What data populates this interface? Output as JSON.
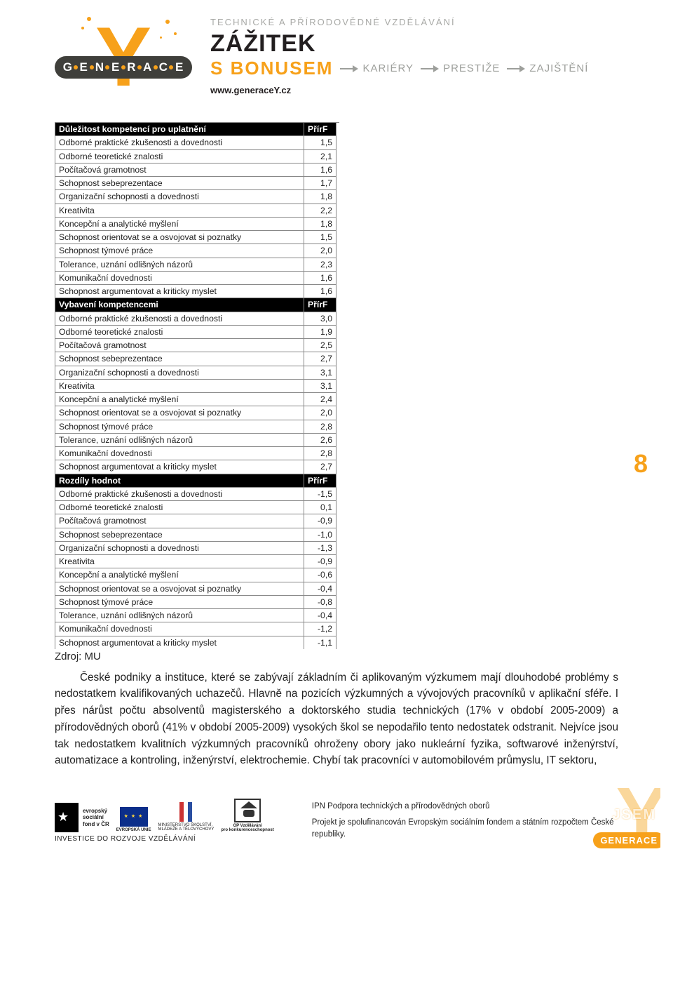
{
  "header": {
    "tagline": "TECHNICKÉ A PŘÍRODOVĚDNÉ VZDĚLÁVÁNÍ",
    "title1": "ZÁŽITEK",
    "title2": "S BONUSEM",
    "arrow_words": [
      "KARIÉRY",
      "PRESTIŽE",
      "ZAJIŠTĚNÍ"
    ],
    "url": "www.generaceY.cz",
    "logo_letters": [
      "G",
      "E",
      "N",
      "E",
      "R",
      "A",
      "C",
      "E"
    ],
    "logo_bar_bg": "#3f3f3b",
    "accent_color": "#f7a11a"
  },
  "page_number": "8",
  "table": {
    "col_header_value": "PřírF",
    "sections": [
      {
        "title": "Důležitost kompetencí pro uplatnění",
        "rows": [
          [
            "Odborné praktické zkušenosti a dovednosti",
            "1,5"
          ],
          [
            "Odborné teoretické znalosti",
            "2,1"
          ],
          [
            "Počítačová gramotnost",
            "1,6"
          ],
          [
            "Schopnost sebeprezentace",
            "1,7"
          ],
          [
            "Organizační schopnosti a dovednosti",
            "1,8"
          ],
          [
            "Kreativita",
            "2,2"
          ],
          [
            "Koncepční a analytické myšlení",
            "1,8"
          ],
          [
            "Schopnost orientovat se a osvojovat si poznatky",
            "1,5"
          ],
          [
            "Schopnost týmové práce",
            "2,0"
          ],
          [
            "Tolerance, uznání odlišných názorů",
            "2,3"
          ],
          [
            "Komunikační dovednosti",
            "1,6"
          ],
          [
            "Schopnost argumentovat a kriticky myslet",
            "1,6"
          ]
        ]
      },
      {
        "title": "Vybavení kompetencemi",
        "rows": [
          [
            "Odborné praktické zkušenosti a dovednosti",
            "3,0"
          ],
          [
            "Odborné teoretické znalosti",
            "1,9"
          ],
          [
            "Počítačová gramotnost",
            "2,5"
          ],
          [
            "Schopnost sebeprezentace",
            "2,7"
          ],
          [
            "Organizační schopnosti a dovednosti",
            "3,1"
          ],
          [
            "Kreativita",
            "3,1"
          ],
          [
            "Koncepční a analytické myšlení",
            "2,4"
          ],
          [
            "Schopnost orientovat se a osvojovat si poznatky",
            "2,0"
          ],
          [
            "Schopnost týmové práce",
            "2,8"
          ],
          [
            "Tolerance, uznání odlišných názorů",
            "2,6"
          ],
          [
            "Komunikační dovednosti",
            "2,8"
          ],
          [
            "Schopnost argumentovat a kriticky myslet",
            "2,7"
          ]
        ]
      },
      {
        "title": "Rozdíly hodnot",
        "rows": [
          [
            "Odborné praktické zkušenosti a dovednosti",
            "-1,5"
          ],
          [
            "Odborné teoretické znalosti",
            "0,1"
          ],
          [
            "Počítačová gramotnost",
            "-0,9"
          ],
          [
            "Schopnost sebeprezentace",
            "-1,0"
          ],
          [
            "Organizační schopnosti a dovednosti",
            "-1,3"
          ],
          [
            "Kreativita",
            "-0,9"
          ],
          [
            "Koncepční a analytické myšlení",
            "-0,6"
          ],
          [
            "Schopnost orientovat se a osvojovat si poznatky",
            "-0,4"
          ],
          [
            "Schopnost týmové práce",
            "-0,8"
          ],
          [
            "Tolerance, uznání odlišných názorů",
            "-0,4"
          ],
          [
            "Komunikační dovednosti",
            "-1,2"
          ]
        ],
        "cut_row": [
          "Schopnost argumentovat a kriticky myslet",
          "-1,1"
        ]
      }
    ]
  },
  "source_label": "Zdroj: MU",
  "body_paragraph": "České podniky a instituce, které se zabývají základním či aplikovaným výzkumem mají dlouhodobé problémy s nedostatkem kvalifikovaných uchazečů. Hlavně na pozicích výzkumných a vývojových pracovníků v aplikační sféře. I přes nárůst počtu absolventů magisterského a doktorského studia technických (17% v období 2005-2009) a přírodovědných oborů (41% v období 2005-2009) vysokých škol se nepodařilo tento nedostatek odstranit. Nejvíce jsou tak nedostatkem kvalitních výzkumných pracovníků ohroženy obory jako nukleární fyzika, softwarové inženýrství, automatizace a kontroling, inženýrství, elektrochemie. Chybí tak pracovníci v automobilovém průmyslu, IT sektoru,",
  "footer": {
    "esf_lines": [
      "evropský",
      "sociální",
      "fond v ČR"
    ],
    "eu_label": "EVROPSKÁ UNIE",
    "msmt_line1": "MINISTERSTVO ŠKOLSTVÍ,",
    "msmt_line2": "MLÁDEŽE A TĚLOVÝCHOVY",
    "opvk_line1": "OP Vzdělávání",
    "opvk_line2": "pro konkurenceschopnost",
    "invest": "INVESTICE DO ROZVOJE VZDĚLÁVÁNÍ",
    "right1": "IPN Podpora technických a přírodovědných oborů",
    "right2": "Projekt je spolufinancován Evropským sociálním fondem a státním rozpočtem České republiky.",
    "corner_word": "GENERACE",
    "corner_bonus": "JSEM"
  }
}
